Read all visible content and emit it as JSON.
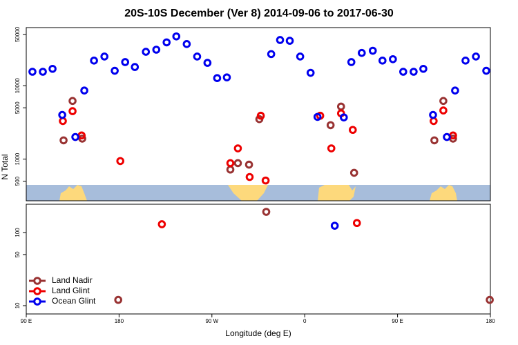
{
  "chart_data": [
    {
      "type": "scatter",
      "title": "20S-10S December (Ver 8)   2014-09-06 to 2017-06-30",
      "y_label": "N Total",
      "log_y": true,
      "xlim": [
        90,
        540
      ],
      "ylim": [
        270,
        62000
      ],
      "yticks": [
        500,
        1000,
        5000,
        10000,
        50000
      ],
      "series": [
        {
          "name": "Land Nadir",
          "color": "#993333",
          "x": [
            126.2,
            134.9,
            144.3,
            287.9,
            295.2,
            306.0,
            316.0,
            385.1,
            395.2,
            407.9,
            485.7,
            494.4,
            503.8
          ],
          "values": [
            1800,
            6200,
            1900,
            720,
            880,
            840,
            3500,
            2900,
            5200,
            650,
            1800,
            6200,
            1900
          ]
        },
        {
          "name": "Land Glint",
          "color": "#ee0000",
          "x": [
            125.5,
            134.9,
            143.7,
            181.2,
            287.9,
            295.2,
            306.6,
            317.4,
            322.1,
            375.0,
            385.8,
            395.2,
            406.6,
            485.0,
            494.4,
            503.8
          ],
          "values": [
            3300,
            4500,
            2100,
            940,
            880,
            1400,
            570,
            3900,
            510,
            3900,
            1400,
            4200,
            2500,
            3300,
            4600,
            2100
          ]
        },
        {
          "name": "Ocean Glint",
          "color": "#0000ee",
          "x": [
            96.0,
            106.1,
            115.5,
            124.9,
            137.6,
            146.3,
            155.7,
            165.8,
            175.8,
            185.9,
            195.3,
            206.0,
            216.1,
            226.1,
            235.5,
            245.6,
            255.7,
            265.7,
            275.1,
            284.5,
            327.5,
            336.1,
            345.5,
            355.6,
            365.7,
            372.4,
            397.9,
            405.2,
            415.3,
            426.0,
            435.4,
            445.5,
            455.5,
            465.6,
            475.0,
            484.4,
            497.8,
            505.8,
            515.9,
            526.0,
            536.0
          ],
          "values": [
            15500,
            15500,
            17000,
            4000,
            2000,
            8600,
            22000,
            25000,
            16000,
            21000,
            18000,
            29000,
            31000,
            39000,
            47000,
            37000,
            25000,
            20500,
            12700,
            13000,
            27000,
            42000,
            41000,
            25000,
            15000,
            3760,
            3700,
            21000,
            28000,
            30000,
            22000,
            23000,
            15500,
            15500,
            17000,
            4000,
            2000,
            8600,
            22000,
            25000,
            16000
          ]
        }
      ]
    },
    {
      "type": "scatter",
      "x_label": "Longitude (deg E)",
      "log_y": true,
      "legend": "lower left",
      "xlim": [
        90,
        540
      ],
      "xticks": [
        {
          "value": 90,
          "label": "90 E"
        },
        180,
        {
          "value": 270,
          "label": "90 W"
        },
        {
          "value": 360,
          "label": "0"
        },
        {
          "value": 450,
          "label": "90 E"
        },
        {
          "value": 540,
          "label": "180"
        }
      ],
      "ylim": [
        7.7,
        244
      ],
      "yticks": [
        10,
        50,
        100
      ],
      "series": [
        {
          "name": "Land Nadir",
          "color": "#993333",
          "x": [
            322.7,
            179.2,
            539.4
          ],
          "values": [
            192,
            12,
            12
          ]
        },
        {
          "name": "Land Glint",
          "color": "#ee0000",
          "x": [
            221.5,
            410.6
          ],
          "values": [
            130,
            135
          ]
        },
        {
          "name": "Ocean Glint",
          "color": "#0000ee",
          "x": [
            389.1
          ],
          "values": [
            124
          ]
        }
      ]
    }
  ]
}
